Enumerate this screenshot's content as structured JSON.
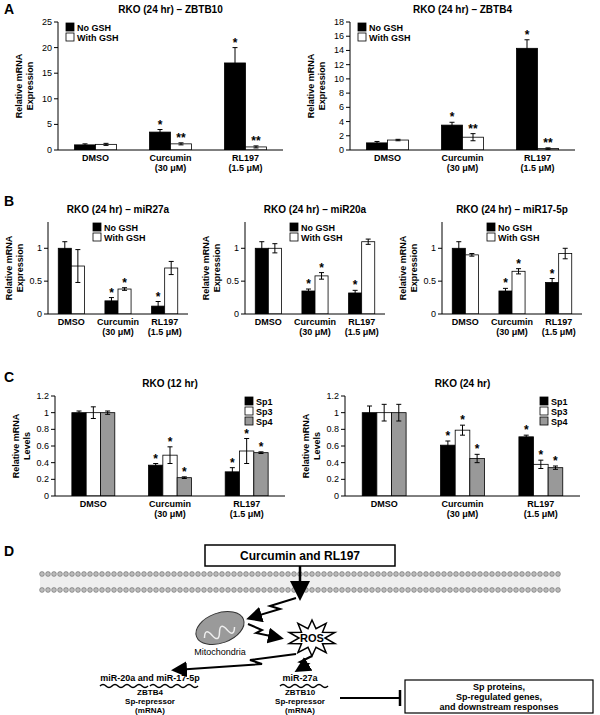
{
  "panels": [
    "A",
    "B",
    "C",
    "D"
  ],
  "chart_data": [
    {
      "type": "bar",
      "title": "RKO (24 hr) – ZBTB10",
      "y_label": "Relative mRNA Expression",
      "categories": [
        "DMSO",
        "Curcumin (30 μM)",
        "RL197 (1.5 μM)"
      ],
      "series": [
        {
          "name": "No GSH",
          "color": "#000000",
          "values": [
            1.0,
            3.5,
            17.0
          ],
          "errors": [
            0.2,
            0.5,
            3.0
          ],
          "significance": [
            null,
            "*",
            "*"
          ]
        },
        {
          "name": "With GSH",
          "color": "#ffffff",
          "values": [
            1.1,
            1.2,
            0.6
          ],
          "errors": [
            0.2,
            0.2,
            0.2
          ],
          "significance": [
            null,
            "**",
            "**"
          ]
        }
      ],
      "ylim": [
        0,
        25
      ],
      "yticks": [
        0,
        5,
        10,
        15,
        20,
        25
      ],
      "legend": "upper left"
    },
    {
      "type": "bar",
      "title": "RKO (24 hr) – ZBTB4",
      "y_label": "Relative mRNA Expression",
      "categories": [
        "DMSO",
        "Curcumin (30 μM)",
        "RL197 (1.5 μM)"
      ],
      "series": [
        {
          "name": "No GSH",
          "color": "#000000",
          "values": [
            1.0,
            3.5,
            14.3
          ],
          "errors": [
            0.2,
            0.4,
            1.2
          ],
          "significance": [
            null,
            "*",
            "*"
          ]
        },
        {
          "name": "With GSH",
          "color": "#ffffff",
          "values": [
            1.4,
            1.8,
            0.2
          ],
          "errors": [
            0.1,
            0.5,
            0.1
          ],
          "significance": [
            null,
            "**",
            "**"
          ]
        }
      ],
      "ylim": [
        0,
        18
      ],
      "yticks": [
        0,
        2,
        4,
        6,
        8,
        10,
        12,
        14,
        16,
        18
      ],
      "legend": "upper left"
    },
    {
      "type": "bar",
      "title": "RKO (24 hr) – miR27a",
      "y_label": "Relative mRNA Expression",
      "categories": [
        "DMSO",
        "Curcumin (30 μM)",
        "RL197 (1.5 μM)"
      ],
      "series": [
        {
          "name": "No GSH",
          "color": "#000000",
          "values": [
            1.0,
            0.2,
            0.12
          ],
          "errors": [
            0.1,
            0.05,
            0.07
          ],
          "significance": [
            null,
            "*",
            "*"
          ]
        },
        {
          "name": "With GSH",
          "color": "#ffffff",
          "values": [
            0.73,
            0.38,
            0.7
          ],
          "errors": [
            0.25,
            0.02,
            0.1
          ],
          "significance": [
            null,
            "*",
            null
          ]
        }
      ],
      "ylim": [
        0,
        1.4
      ],
      "yticks": [
        0,
        0.5,
        1
      ],
      "legend": "upper center"
    },
    {
      "type": "bar",
      "title": "RKO (24 hr) – miR20a",
      "y_label": "Relative mRNA Expression",
      "categories": [
        "DMSO",
        "Curcumin (30 μM)",
        "RL197 (1.5 μM)"
      ],
      "series": [
        {
          "name": "No GSH",
          "color": "#000000",
          "values": [
            1.0,
            0.35,
            0.32
          ],
          "errors": [
            0.1,
            0.03,
            0.04
          ],
          "significance": [
            null,
            "*",
            "*"
          ]
        },
        {
          "name": "With GSH",
          "color": "#ffffff",
          "values": [
            1.0,
            0.58,
            1.1
          ],
          "errors": [
            0.07,
            0.05,
            0.04
          ],
          "significance": [
            null,
            "*",
            null
          ]
        }
      ],
      "ylim": [
        0,
        1.4
      ],
      "yticks": [
        0,
        0.5,
        1
      ],
      "legend": "upper center"
    },
    {
      "type": "bar",
      "title": "RKO (24 hr) – miR17-5p",
      "y_label": "Relative mRNA Expression",
      "categories": [
        "DMSO",
        "Curcumin (30 μM)",
        "RL197 (1.5 μM)"
      ],
      "series": [
        {
          "name": "No GSH",
          "color": "#000000",
          "values": [
            1.0,
            0.35,
            0.48
          ],
          "errors": [
            0.1,
            0.04,
            0.06
          ],
          "significance": [
            null,
            "*",
            "*"
          ]
        },
        {
          "name": "With GSH",
          "color": "#ffffff",
          "values": [
            0.9,
            0.65,
            0.92
          ],
          "errors": [
            0.02,
            0.04,
            0.08
          ],
          "significance": [
            null,
            "*",
            null
          ]
        }
      ],
      "ylim": [
        0,
        1.4
      ],
      "yticks": [
        0,
        0.5,
        1
      ],
      "legend": "upper center"
    },
    {
      "type": "bar",
      "title": "RKO (12 hr)",
      "y_label": "Relative mRNA Levels",
      "categories": [
        "DMSO",
        "Curcumin (30 μM)",
        "RL197 (1.5 μM)"
      ],
      "series": [
        {
          "name": "Sp1",
          "color": "#000000",
          "values": [
            1.0,
            0.37,
            0.29
          ],
          "errors": [
            0.02,
            0.02,
            0.05
          ],
          "significance": [
            null,
            "*",
            "*"
          ]
        },
        {
          "name": "Sp3",
          "color": "#ffffff",
          "values": [
            1.0,
            0.49,
            0.54
          ],
          "errors": [
            0.07,
            0.1,
            0.15
          ],
          "significance": [
            null,
            "*",
            "*"
          ]
        },
        {
          "name": "Sp4",
          "color": "#999999",
          "values": [
            1.0,
            0.22,
            0.52
          ],
          "errors": [
            0.02,
            0.01,
            0.01
          ],
          "significance": [
            null,
            "*",
            "*"
          ]
        }
      ],
      "ylim": [
        0,
        1.2
      ],
      "yticks": [
        0,
        0.2,
        0.4,
        0.6,
        0.8,
        1,
        1.2
      ],
      "legend": "upper right"
    },
    {
      "type": "bar",
      "title": "RKO (24 hr)",
      "y_label": "Relative mRNA Levels",
      "categories": [
        "DMSO",
        "Curcumin (30 μM)",
        "RL197 (1.5 μM)"
      ],
      "series": [
        {
          "name": "Sp1",
          "color": "#000000",
          "values": [
            1.0,
            0.61,
            0.71
          ],
          "errors": [
            0.08,
            0.05,
            0.02
          ],
          "significance": [
            null,
            "*",
            "*"
          ]
        },
        {
          "name": "Sp3",
          "color": "#ffffff",
          "values": [
            1.0,
            0.79,
            0.38
          ],
          "errors": [
            0.1,
            0.06,
            0.05
          ],
          "significance": [
            null,
            "*",
            "*"
          ]
        },
        {
          "name": "Sp4",
          "color": "#999999",
          "values": [
            1.0,
            0.45,
            0.34
          ],
          "errors": [
            0.1,
            0.05,
            0.02
          ],
          "significance": [
            null,
            "*",
            "*"
          ]
        }
      ],
      "ylim": [
        0,
        1.2
      ],
      "yticks": [
        0,
        0.2,
        0.4,
        0.6,
        0.8,
        1,
        1.2
      ],
      "legend": "upper right"
    }
  ],
  "diagram": {
    "drug": "Curcumin and RL197",
    "organelle": "Mitochondria",
    "ros": "ROS",
    "mirna_left": "miR-20a and miR-17-5p",
    "mirna_right": "miR-27a",
    "repressor_left": [
      "ZBTB4",
      "Sp-repressor",
      "(mRNA)"
    ],
    "repressor_right": [
      "ZBTB10",
      "Sp-repressor",
      "(mRNA)"
    ],
    "outcome": [
      "Sp proteins,",
      "Sp-regulated genes,",
      "and downstream responses"
    ]
  }
}
